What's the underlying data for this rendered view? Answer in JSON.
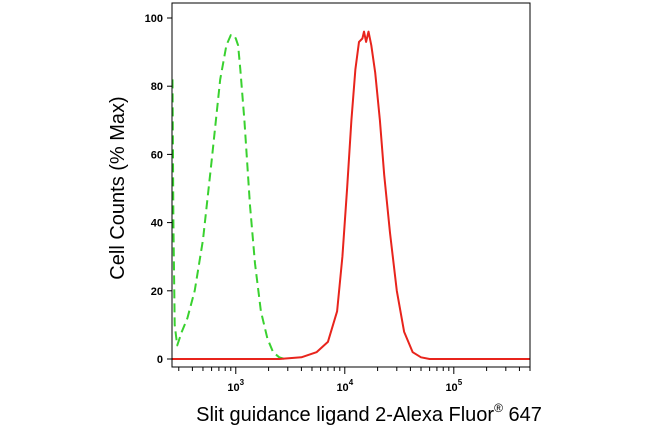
{
  "chart_data": {
    "type": "line",
    "xlabel": "Slit guidance ligand 2-Alexa Fluor",
    "xlabel_superscript": "®",
    "xlabel_suffix": " 647",
    "ylabel": "Cell Counts (% Max)",
    "xscale": "log",
    "xlim": [
      260,
      500000
    ],
    "ylim": [
      0,
      100
    ],
    "y_ticks": [
      0,
      20,
      40,
      60,
      80,
      100
    ],
    "x_ticks": [
      {
        "value": 1000,
        "base": "10",
        "exp": "3"
      },
      {
        "value": 10000,
        "base": "10",
        "exp": "4"
      },
      {
        "value": 100000,
        "base": "10",
        "exp": "5"
      }
    ],
    "grid": false,
    "series": [
      {
        "color": "#39d12f",
        "dash": true,
        "x": [
          262,
          268,
          275,
          290,
          320,
          360,
          420,
          500,
          600,
          720,
          820,
          900,
          960,
          1000,
          1050,
          1100,
          1200,
          1350,
          1500,
          1700,
          1950,
          2200,
          2500,
          2800
        ],
        "y": [
          82,
          40,
          10,
          4,
          8,
          12,
          20,
          35,
          58,
          82,
          92,
          95,
          95,
          94,
          92,
          85,
          70,
          45,
          28,
          14,
          6,
          2,
          0.5,
          0
        ]
      },
      {
        "color": "#e8241c",
        "dash": false,
        "x": [
          260,
          1000,
          2500,
          4000,
          5500,
          7000,
          8500,
          9500,
          10500,
          11500,
          12500,
          13500,
          14500,
          15000,
          15700,
          16500,
          17500,
          19000,
          21000,
          23000,
          26000,
          30000,
          35000,
          42000,
          50000,
          60000,
          100000,
          500000
        ],
        "y": [
          0,
          0,
          0,
          0.5,
          2,
          5,
          14,
          30,
          50,
          70,
          85,
          93,
          94,
          96,
          93,
          96,
          92,
          84,
          70,
          54,
          37,
          20,
          8,
          2,
          0.5,
          0,
          0,
          0
        ]
      }
    ]
  }
}
